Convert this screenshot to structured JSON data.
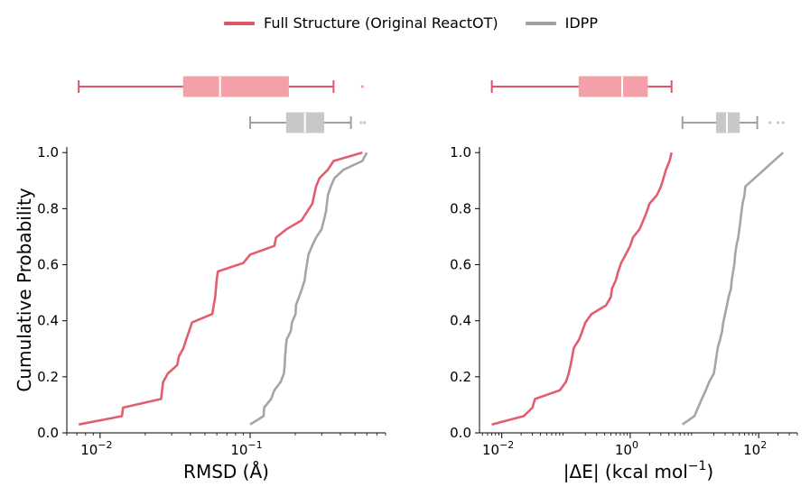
{
  "legend": {
    "series_a": "Full Structure (Original ReactOT)",
    "series_b": "IDPP"
  },
  "colors": {
    "series_a": "#e05565",
    "series_a_box": "#f4a0a8",
    "series_b": "#a0a0a0",
    "series_b_box": "#c8c8c8"
  },
  "chart_data": [
    {
      "type": "line",
      "title": "",
      "xlabel": "RMSD (Å)",
      "ylabel": "Cumulative Probability",
      "xscale": "log",
      "xlim": [
        0.006,
        0.8
      ],
      "ylim": [
        0.0,
        1.02
      ],
      "xticks": [
        {
          "value": 0.01,
          "base": "10",
          "exp": "−2"
        },
        {
          "value": 0.1,
          "base": "10",
          "exp": "−1"
        }
      ],
      "yticks": [
        "0.0",
        "0.2",
        "0.4",
        "0.6",
        "0.8",
        "1.0"
      ],
      "series": [
        {
          "name": "Full Structure (Original ReactOT)",
          "points": [
            [
              0.0072,
              0.03
            ],
            [
              0.014,
              0.06
            ],
            [
              0.0142,
              0.09
            ],
            [
              0.0255,
              0.121
            ],
            [
              0.0263,
              0.181
            ],
            [
              0.0283,
              0.212
            ],
            [
              0.0327,
              0.242
            ],
            [
              0.0335,
              0.273
            ],
            [
              0.036,
              0.303
            ],
            [
              0.0375,
              0.333
            ],
            [
              0.041,
              0.394
            ],
            [
              0.056,
              0.424
            ],
            [
              0.0585,
              0.485
            ],
            [
              0.0598,
              0.545
            ],
            [
              0.061,
              0.576
            ],
            [
              0.09,
              0.606
            ],
            [
              0.1,
              0.636
            ],
            [
              0.145,
              0.667
            ],
            [
              0.149,
              0.697
            ],
            [
              0.175,
              0.727
            ],
            [
              0.22,
              0.758
            ],
            [
              0.26,
              0.818
            ],
            [
              0.275,
              0.879
            ],
            [
              0.29,
              0.909
            ],
            [
              0.33,
              0.939
            ],
            [
              0.36,
              0.97
            ],
            [
              0.56,
              1.0
            ]
          ],
          "box": {
            "whisker_low": 0.0072,
            "q1": 0.036,
            "median": 0.063,
            "q3": 0.18,
            "whisker_high": 0.36,
            "outliers": [
              0.56
            ]
          }
        },
        {
          "name": "IDPP",
          "points": [
            [
              0.1,
              0.03
            ],
            [
              0.123,
              0.06
            ],
            [
              0.124,
              0.09
            ],
            [
              0.138,
              0.121
            ],
            [
              0.145,
              0.152
            ],
            [
              0.16,
              0.182
            ],
            [
              0.168,
              0.212
            ],
            [
              0.17,
              0.242
            ],
            [
              0.171,
              0.273
            ],
            [
              0.173,
              0.303
            ],
            [
              0.175,
              0.333
            ],
            [
              0.187,
              0.364
            ],
            [
              0.19,
              0.394
            ],
            [
              0.201,
              0.424
            ],
            [
              0.202,
              0.455
            ],
            [
              0.212,
              0.485
            ],
            [
              0.222,
              0.515
            ],
            [
              0.231,
              0.545
            ],
            [
              0.235,
              0.576
            ],
            [
              0.24,
              0.606
            ],
            [
              0.245,
              0.636
            ],
            [
              0.259,
              0.667
            ],
            [
              0.275,
              0.697
            ],
            [
              0.3,
              0.727
            ],
            [
              0.31,
              0.758
            ],
            [
              0.32,
              0.788
            ],
            [
              0.325,
              0.818
            ],
            [
              0.33,
              0.848
            ],
            [
              0.345,
              0.879
            ],
            [
              0.365,
              0.909
            ],
            [
              0.42,
              0.939
            ],
            [
              0.56,
              0.97
            ],
            [
              0.6,
              1.0
            ]
          ],
          "box": {
            "whisker_low": 0.1,
            "q1": 0.175,
            "median": 0.232,
            "q3": 0.31,
            "whisker_high": 0.47,
            "outliers": [
              0.55,
              0.58
            ]
          }
        }
      ]
    },
    {
      "type": "line",
      "title": "",
      "xlabel_prefix": "|ΔE| (kcal mol",
      "xlabel_exp": "−1",
      "xlabel_suffix": ")",
      "ylabel": "",
      "xscale": "log",
      "xlim": [
        0.0045,
        400
      ],
      "ylim": [
        0.0,
        1.02
      ],
      "xticks": [
        {
          "value": 0.01,
          "base": "10",
          "exp": "−2"
        },
        {
          "value": 1,
          "base": "10",
          "exp": "0"
        },
        {
          "value": 100,
          "base": "10",
          "exp": "2"
        }
      ],
      "yticks": [
        "0.0",
        "0.2",
        "0.4",
        "0.6",
        "0.8",
        "1.0"
      ],
      "series": [
        {
          "name": "Full Structure (Original ReactOT)",
          "points": [
            [
              0.007,
              0.03
            ],
            [
              0.022,
              0.06
            ],
            [
              0.03,
              0.09
            ],
            [
              0.033,
              0.121
            ],
            [
              0.08,
              0.152
            ],
            [
              0.1,
              0.182
            ],
            [
              0.11,
              0.212
            ],
            [
              0.118,
              0.242
            ],
            [
              0.125,
              0.273
            ],
            [
              0.132,
              0.303
            ],
            [
              0.16,
              0.333
            ],
            [
              0.18,
              0.364
            ],
            [
              0.2,
              0.394
            ],
            [
              0.25,
              0.424
            ],
            [
              0.42,
              0.455
            ],
            [
              0.5,
              0.485
            ],
            [
              0.52,
              0.515
            ],
            [
              0.6,
              0.545
            ],
            [
              0.65,
              0.576
            ],
            [
              0.72,
              0.606
            ],
            [
              0.85,
              0.636
            ],
            [
              1.0,
              0.667
            ],
            [
              1.1,
              0.697
            ],
            [
              1.4,
              0.727
            ],
            [
              1.6,
              0.758
            ],
            [
              1.8,
              0.788
            ],
            [
              2.0,
              0.818
            ],
            [
              2.6,
              0.848
            ],
            [
              3.0,
              0.879
            ],
            [
              3.3,
              0.909
            ],
            [
              3.6,
              0.939
            ],
            [
              4.1,
              0.97
            ],
            [
              4.4,
              1.0
            ]
          ],
          "box": {
            "whisker_low": 0.007,
            "q1": 0.16,
            "median": 0.75,
            "q3": 1.85,
            "whisker_high": 4.4,
            "outliers": []
          }
        },
        {
          "name": "IDPP",
          "points": [
            [
              6.5,
              0.03
            ],
            [
              10,
              0.06
            ],
            [
              13,
              0.121
            ],
            [
              15,
              0.152
            ],
            [
              17,
              0.182
            ],
            [
              20,
              0.212
            ],
            [
              21,
              0.242
            ],
            [
              22,
              0.273
            ],
            [
              23,
              0.303
            ],
            [
              25,
              0.333
            ],
            [
              27,
              0.364
            ],
            [
              28,
              0.394
            ],
            [
              30,
              0.424
            ],
            [
              32,
              0.455
            ],
            [
              34,
              0.485
            ],
            [
              37,
              0.515
            ],
            [
              38,
              0.545
            ],
            [
              40,
              0.576
            ],
            [
              42,
              0.606
            ],
            [
              43,
              0.636
            ],
            [
              45,
              0.667
            ],
            [
              48,
              0.697
            ],
            [
              50,
              0.727
            ],
            [
              52,
              0.758
            ],
            [
              54,
              0.788
            ],
            [
              56,
              0.818
            ],
            [
              60,
              0.848
            ],
            [
              62,
              0.879
            ],
            [
              240,
              1.0
            ]
          ],
          "box": {
            "whisker_low": 6.5,
            "q1": 22,
            "median": 32,
            "q3": 50,
            "whisker_high": 95,
            "outliers": [
              150,
              200,
              240
            ]
          }
        }
      ]
    }
  ]
}
